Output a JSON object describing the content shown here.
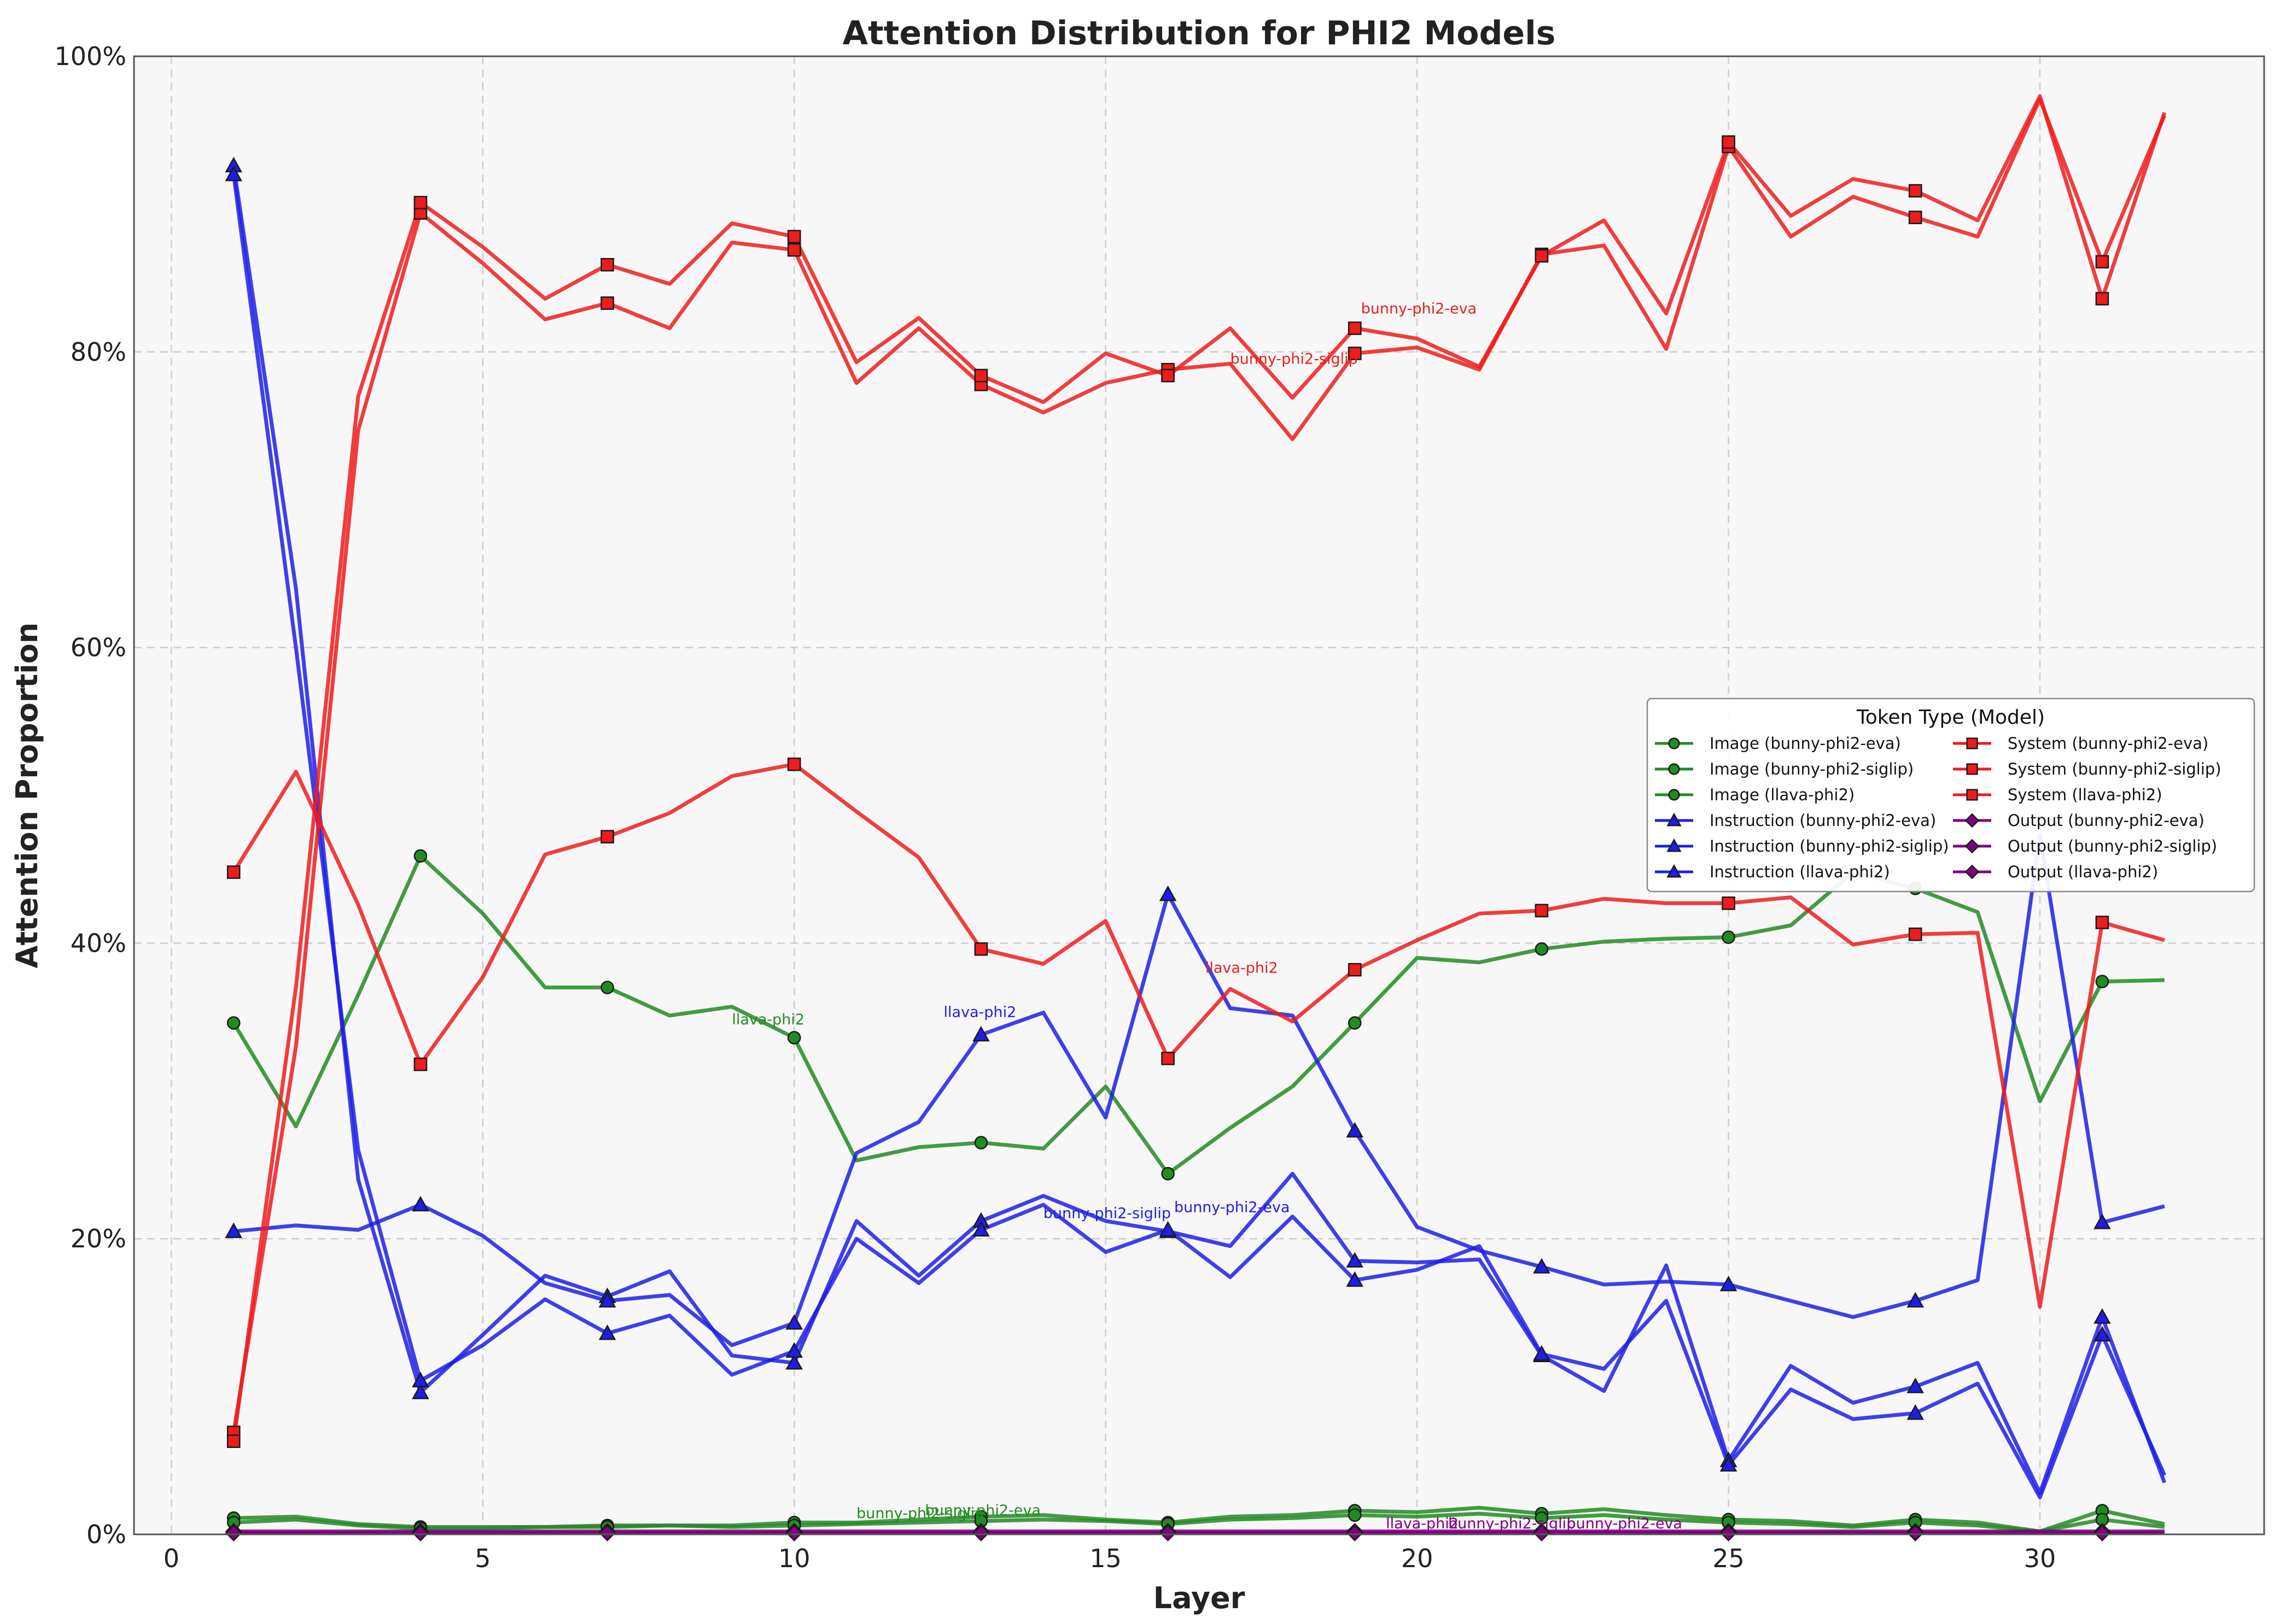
{
  "chart_data": {
    "type": "line",
    "title": "Attention Distribution for PHI2 Models",
    "xlabel": "Layer",
    "ylabel": "Attention Proportion",
    "xlim": [
      -0.6,
      33.6
    ],
    "ylim": [
      0,
      100
    ],
    "xticks": [
      0,
      5,
      10,
      15,
      20,
      25,
      30
    ],
    "yticks": [
      0,
      20,
      40,
      60,
      80,
      100
    ],
    "ytick_suffix": "%",
    "grid": true,
    "legend": {
      "title": "Token Type (Model)",
      "placement": "center-right"
    },
    "colors": {
      "Image": "#228B22",
      "Instruction": "#1E1EE6",
      "System": "#EE1C1C",
      "Output": "#800080"
    },
    "markers": {
      "Image": "circle",
      "Instruction": "triangle",
      "System": "square",
      "Output": "diamond"
    },
    "linestyles": {
      "bunny-phi2-eva": "dashdot",
      "bunny-phi2-siglip": "dashed",
      "llava-phi2": "solid"
    },
    "marker_layers": [
      1,
      4,
      7,
      10,
      13,
      16,
      19,
      22,
      25,
      28,
      31
    ],
    "x": [
      1,
      2,
      3,
      4,
      5,
      6,
      7,
      8,
      9,
      10,
      11,
      12,
      13,
      14,
      15,
      16,
      17,
      18,
      19,
      20,
      21,
      22,
      23,
      24,
      25,
      26,
      27,
      28,
      29,
      30,
      31,
      32
    ],
    "series": [
      {
        "name": "Image (bunny-phi2-eva)",
        "token": "Image",
        "model": "bunny-phi2-eva",
        "values": [
          1.1,
          1.2,
          0.7,
          0.5,
          0.5,
          0.5,
          0.6,
          0.6,
          0.6,
          0.8,
          0.8,
          1.0,
          1.2,
          1.3,
          1.0,
          0.8,
          1.2,
          1.3,
          1.6,
          1.5,
          1.8,
          1.4,
          1.7,
          1.3,
          1.0,
          0.9,
          0.6,
          1.0,
          0.8,
          0.2,
          1.6,
          0.7
        ]
      },
      {
        "name": "Image (bunny-phi2-siglip)",
        "token": "Image",
        "model": "bunny-phi2-siglip",
        "values": [
          0.8,
          1.0,
          0.6,
          0.4,
          0.4,
          0.5,
          0.5,
          0.6,
          0.5,
          0.6,
          0.7,
          0.8,
          0.9,
          1.0,
          0.9,
          0.7,
          1.0,
          1.1,
          1.3,
          1.2,
          1.4,
          1.1,
          1.3,
          1.0,
          0.8,
          0.7,
          0.5,
          0.8,
          0.6,
          0.2,
          1.0,
          0.5
        ]
      },
      {
        "name": "Image (llava-phi2)",
        "token": "Image",
        "model": "llava-phi2",
        "values": [
          34.6,
          27.6,
          36.5,
          45.9,
          42.0,
          37.0,
          37.0,
          35.1,
          35.7,
          33.6,
          25.3,
          26.2,
          26.5,
          26.1,
          30.3,
          24.4,
          27.5,
          30.3,
          34.6,
          39.0,
          38.7,
          39.6,
          40.1,
          40.3,
          40.4,
          41.2,
          44.8,
          43.7,
          42.1,
          29.3,
          37.4,
          37.5
        ]
      },
      {
        "name": "Instruction (bunny-phi2-eva)",
        "token": "Instruction",
        "model": "bunny-phi2-eva",
        "values": [
          92.6,
          64.0,
          24.0,
          9.6,
          13.5,
          17.5,
          16.1,
          17.8,
          12.1,
          11.6,
          21.2,
          17.5,
          21.2,
          22.9,
          21.2,
          20.5,
          19.5,
          24.4,
          18.5,
          18.4,
          18.6,
          12.1,
          9.7,
          18.2,
          5.0,
          11.4,
          8.9,
          10.0,
          11.6,
          2.8,
          14.7,
          3.5
        ]
      },
      {
        "name": "Instruction (bunny-phi2-siglip)",
        "token": "Instruction",
        "model": "bunny-phi2-siglip",
        "values": [
          92.0,
          60.0,
          26.0,
          10.4,
          12.8,
          15.9,
          13.6,
          14.8,
          10.8,
          12.4,
          20.0,
          17.0,
          20.6,
          22.3,
          19.1,
          20.6,
          17.4,
          21.5,
          17.2,
          17.9,
          19.5,
          12.2,
          11.2,
          15.8,
          4.7,
          9.8,
          7.8,
          8.2,
          10.2,
          2.5,
          13.5,
          4.0
        ]
      },
      {
        "name": "Instruction (llava-phi2)",
        "token": "Instruction",
        "model": "llava-phi2",
        "values": [
          20.5,
          20.9,
          20.6,
          22.3,
          20.2,
          17.0,
          15.8,
          16.2,
          12.8,
          14.3,
          25.8,
          27.9,
          33.8,
          35.3,
          28.2,
          43.3,
          35.6,
          35.1,
          27.3,
          20.8,
          19.2,
          18.1,
          16.9,
          17.1,
          16.9,
          15.8,
          14.7,
          15.8,
          17.2,
          47.3,
          21.1,
          22.2
        ]
      },
      {
        "name": "System (bunny-phi2-eva)",
        "token": "System",
        "model": "bunny-phi2-eva",
        "values": [
          6.9,
          33.0,
          74.7,
          89.4,
          86.0,
          82.2,
          83.3,
          81.6,
          87.4,
          86.9,
          77.9,
          81.6,
          77.8,
          75.9,
          77.9,
          78.8,
          79.2,
          74.1,
          79.9,
          80.3,
          78.8,
          86.6,
          87.2,
          80.2,
          93.9,
          87.8,
          90.5,
          89.1,
          87.8,
          97.1,
          86.1,
          96.0
        ]
      },
      {
        "name": "System (bunny-phi2-siglip)",
        "token": "System",
        "model": "bunny-phi2-siglip",
        "values": [
          6.3,
          37.0,
          77.0,
          90.1,
          87.1,
          83.6,
          85.9,
          84.6,
          88.7,
          87.8,
          79.3,
          82.3,
          78.4,
          76.6,
          79.9,
          78.4,
          81.6,
          76.9,
          81.6,
          80.9,
          79.0,
          86.5,
          88.9,
          82.6,
          94.2,
          89.2,
          91.7,
          90.9,
          88.9,
          97.3,
          83.6,
          96.2
        ]
      },
      {
        "name": "System (llava-phi2)",
        "token": "System",
        "model": "llava-phi2",
        "values": [
          44.8,
          51.6,
          42.6,
          31.8,
          37.7,
          46.0,
          47.2,
          48.8,
          51.3,
          52.1,
          48.9,
          45.8,
          39.6,
          38.6,
          41.5,
          32.2,
          36.9,
          34.7,
          38.2,
          40.2,
          42.0,
          42.2,
          43.0,
          42.7,
          42.7,
          43.1,
          39.9,
          40.6,
          40.7,
          15.4,
          41.4,
          40.2
        ]
      },
      {
        "name": "Output (bunny-phi2-eva)",
        "token": "Output",
        "model": "bunny-phi2-eva",
        "values": [
          0.2,
          0.2,
          0.2,
          0.2,
          0.2,
          0.2,
          0.2,
          0.2,
          0.2,
          0.2,
          0.2,
          0.2,
          0.2,
          0.2,
          0.2,
          0.2,
          0.2,
          0.2,
          0.2,
          0.2,
          0.2,
          0.2,
          0.2,
          0.2,
          0.2,
          0.2,
          0.2,
          0.2,
          0.2,
          0.2,
          0.2,
          0.2
        ]
      },
      {
        "name": "Output (bunny-phi2-siglip)",
        "token": "Output",
        "model": "bunny-phi2-siglip",
        "values": [
          0.1,
          0.1,
          0.1,
          0.1,
          0.1,
          0.1,
          0.1,
          0.1,
          0.1,
          0.1,
          0.1,
          0.1,
          0.1,
          0.1,
          0.1,
          0.1,
          0.1,
          0.1,
          0.1,
          0.1,
          0.1,
          0.1,
          0.1,
          0.1,
          0.1,
          0.1,
          0.1,
          0.1,
          0.1,
          0.1,
          0.1,
          0.1
        ]
      },
      {
        "name": "Output (llava-phi2)",
        "token": "Output",
        "model": "llava-phi2",
        "values": [
          0.1,
          0.1,
          0.1,
          0.1,
          0.1,
          0.1,
          0.1,
          0.1,
          0.1,
          0.1,
          0.1,
          0.1,
          0.1,
          0.1,
          0.1,
          0.1,
          0.1,
          0.1,
          0.1,
          0.1,
          0.1,
          0.1,
          0.1,
          0.1,
          0.1,
          0.1,
          0.1,
          0.1,
          0.1,
          0.1,
          0.1,
          0.1
        ]
      }
    ],
    "annotations": [
      {
        "text": "bunny-phi2-eva",
        "x": 19.1,
        "y": 82.6,
        "token": "System"
      },
      {
        "text": "bunny-phi2-siglip",
        "x": 17.0,
        "y": 79.2,
        "token": "System"
      },
      {
        "text": "llava-phi2",
        "x": 16.6,
        "y": 38.0,
        "token": "System"
      },
      {
        "text": "llava-phi2",
        "x": 9.0,
        "y": 34.5,
        "token": "Image"
      },
      {
        "text": "llava-phi2",
        "x": 12.4,
        "y": 35.0,
        "token": "Instruction"
      },
      {
        "text": "bunny-phi2-siglip",
        "x": 14.0,
        "y": 21.4,
        "token": "Instruction"
      },
      {
        "text": "bunny-phi2-eva",
        "x": 16.1,
        "y": 21.8,
        "token": "Instruction"
      },
      {
        "text": "bunny-phi2-siglip",
        "x": 11.0,
        "y": 1.1,
        "token": "Image"
      },
      {
        "text": "bunny-phi2-eva",
        "x": 12.1,
        "y": 1.3,
        "token": "Image"
      },
      {
        "text": "llava-phi2",
        "x": 19.5,
        "y": 0.4,
        "token": "Output"
      },
      {
        "text": "bunny-phi2-siglip",
        "x": 20.5,
        "y": 0.4,
        "token": "Output"
      },
      {
        "text": "bunny-phi2-eva",
        "x": 22.4,
        "y": 0.4,
        "token": "Output"
      }
    ]
  }
}
